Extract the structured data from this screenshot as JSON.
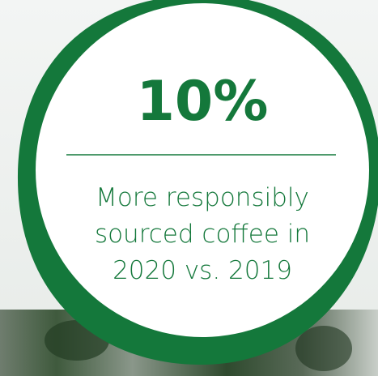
{
  "stat": {
    "value": "10%",
    "description": [
      "More responsibly",
      "sourced coffee in",
      "2020 vs. 2019"
    ]
  }
}
